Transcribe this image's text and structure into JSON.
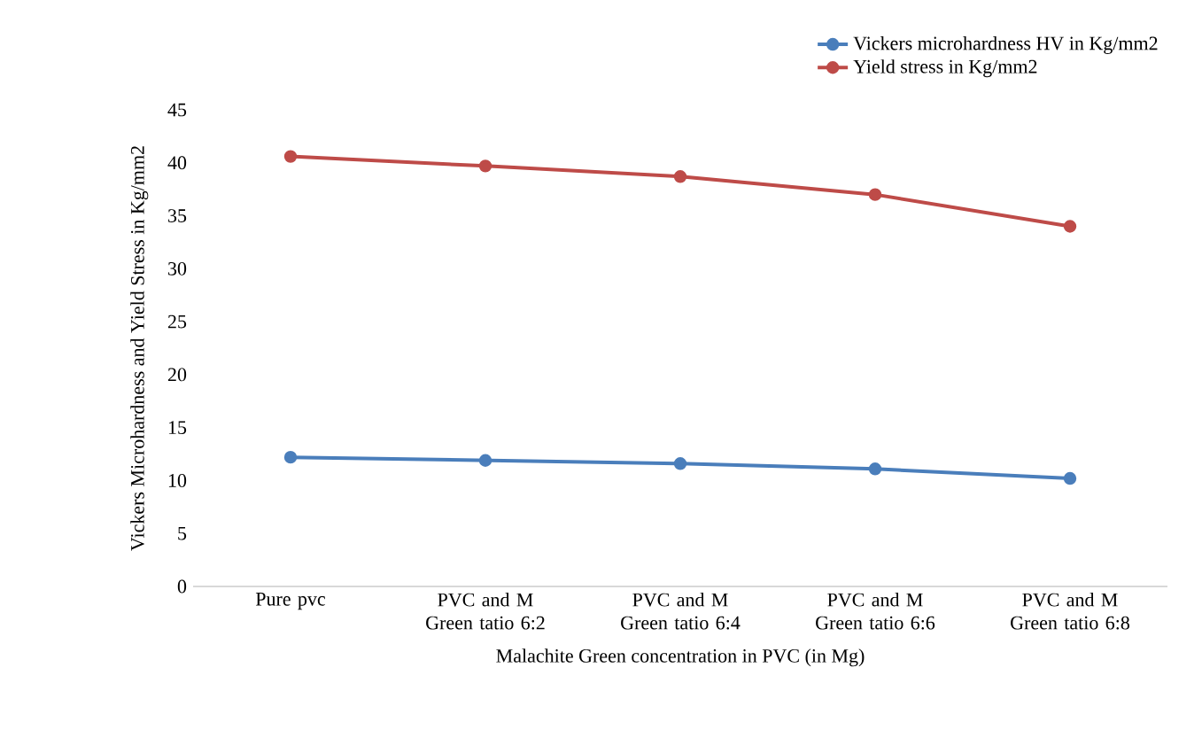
{
  "chart_data": {
    "type": "line",
    "xlabel": "Malachite Green concentration in PVC (in Mg)",
    "ylabel": "Vickers Microhardness and Yield Stress in Kg/mm2",
    "categories": [
      "Pure pvc",
      "PVC and M Green tatio 6:2",
      "PVC and M Green tatio 6:4",
      "PVC and M Green tatio 6:6",
      "PVC and M Green tatio 6:8"
    ],
    "series": [
      {
        "name": "Vickers microhardness HV in Kg/mm2",
        "color": "#4a7ebb",
        "values": [
          12.2,
          11.9,
          11.6,
          11.1,
          10.2
        ]
      },
      {
        "name": "Yield stress in Kg/mm2",
        "color": "#be4b48",
        "values": [
          40.6,
          39.7,
          38.7,
          37.0,
          34.0
        ]
      }
    ],
    "ylim": [
      0,
      45
    ],
    "yticks": [
      0,
      5,
      10,
      15,
      20,
      25,
      30,
      35,
      40,
      45
    ],
    "grid": false,
    "legend": "top right",
    "marker": "circle",
    "line_style": "solid"
  }
}
